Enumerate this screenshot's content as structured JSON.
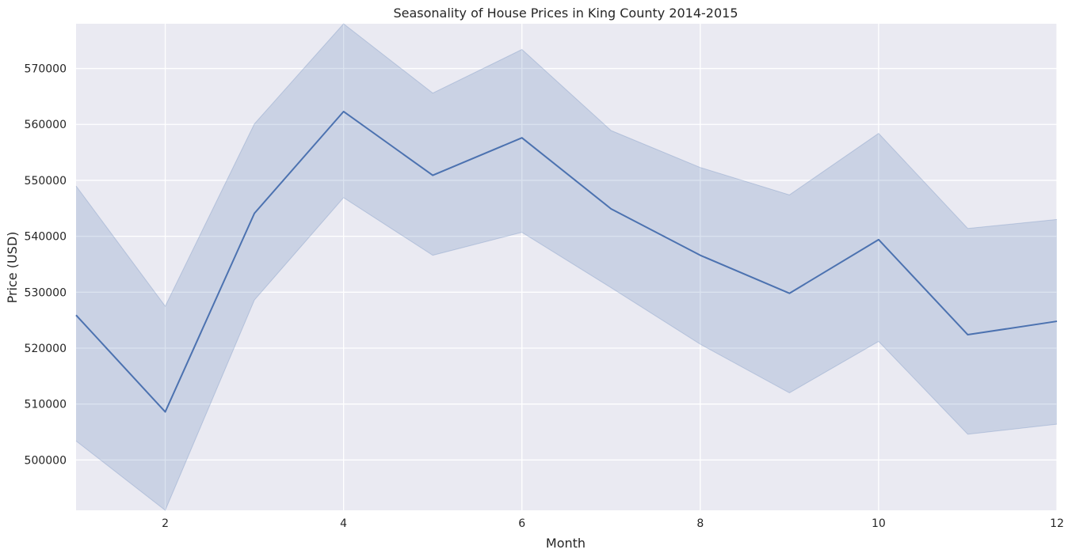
{
  "chart_data": {
    "type": "line",
    "title": "Seasonality of House Prices in King County 2014-2015",
    "xlabel": "Month",
    "ylabel": "Price (USD)",
    "xlim": [
      1,
      12
    ],
    "ylim": [
      491000,
      578000
    ],
    "x_ticks": [
      2,
      4,
      6,
      8,
      10,
      12
    ],
    "y_ticks": [
      500000,
      510000,
      520000,
      530000,
      540000,
      550000,
      560000,
      570000
    ],
    "grid": true,
    "x": [
      1,
      2,
      3,
      4,
      5,
      6,
      7,
      8,
      9,
      10,
      11,
      12
    ],
    "series": [
      {
        "values": [
          525900,
          508600,
          544100,
          562300,
          550900,
          557600,
          544900,
          536600,
          529800,
          539400,
          522400,
          524800
        ],
        "ci_lower": [
          503400,
          491000,
          528600,
          546900,
          536600,
          540700,
          530800,
          520700,
          512000,
          521200,
          504600,
          506400
        ],
        "ci_upper": [
          549000,
          527500,
          560100,
          578000,
          565600,
          573400,
          558900,
          552300,
          547400,
          558400,
          541400,
          543000
        ]
      }
    ],
    "colors": {
      "line": "#4c72b0",
      "band": "#4c72b0",
      "plot_bg": "#eaeaf2",
      "grid": "#ffffff"
    }
  }
}
